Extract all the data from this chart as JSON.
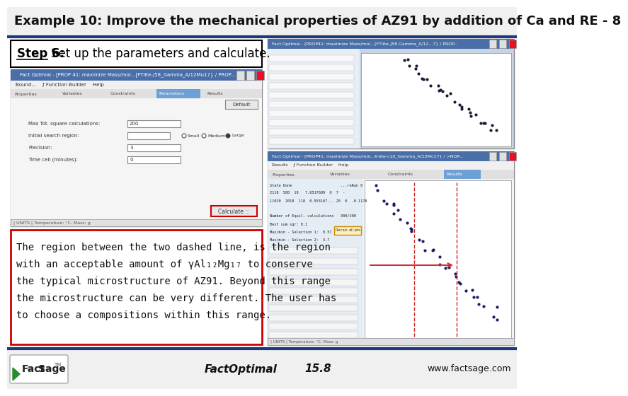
{
  "title": "Example 10: Improve the mechanical properties of AZ91 by addition of Ca and RE - 8",
  "title_fontsize": 13,
  "title_bg": "#f0f0f0",
  "step_text": "Step 6:  Set up the parameters and calculate.",
  "step_fontsize": 12,
  "body_text_lines": [
    "The region between the two dashed line, is the region",
    "with an acceptable amount of γAl₁₂Mg₁₇ to conserve",
    "the typical microstructure of AZ91. Beyond this range",
    "the microstructure can be very different. The user has",
    "to choose a compositions within this range."
  ],
  "body_fontsize": 10.0,
  "footer_right": "www.factsage.com",
  "footer_fontsize": 11,
  "bg_color": "#ffffff",
  "header_bg": "#f0f0f0",
  "blue_line_color": "#1a3a7a",
  "body_box_border": "#cc0000",
  "screenshot_bg": "#c8d4e0"
}
